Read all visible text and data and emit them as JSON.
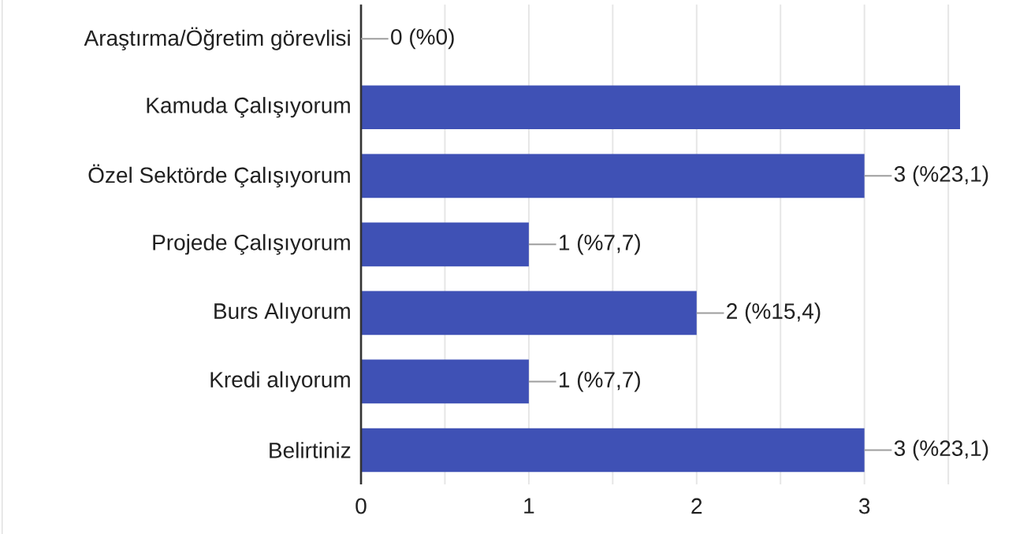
{
  "chart_data": {
    "type": "bar",
    "orientation": "horizontal",
    "categories": [
      "Araştırma/Öğretim görevlisi",
      "Kamuda Çalışıyorum",
      "Özel Sektörde Çalışıyorum",
      "Projede Çalışıyorum",
      "Burs Alıyorum",
      "Kredi alıyorum",
      "Belirtiniz"
    ],
    "values": [
      0,
      3.57,
      3,
      1,
      2,
      1,
      3
    ],
    "value_labels": [
      "0 (%0)",
      null,
      "3 (%23,1)",
      "1 (%7,7)",
      "2 (%15,4)",
      "1 (%7,7)",
      "3 (%23,1)"
    ],
    "color": "#3f51b5",
    "xlim": [
      0,
      3.57
    ],
    "xticks": [
      0,
      {
        "value": 0.5,
        "label": null
      },
      1,
      {
        "value": 1.5,
        "label": null
      },
      2,
      {
        "value": 2.5,
        "label": null
      },
      3,
      {
        "value": 3.5,
        "label": null
      }
    ],
    "grid": "x"
  }
}
